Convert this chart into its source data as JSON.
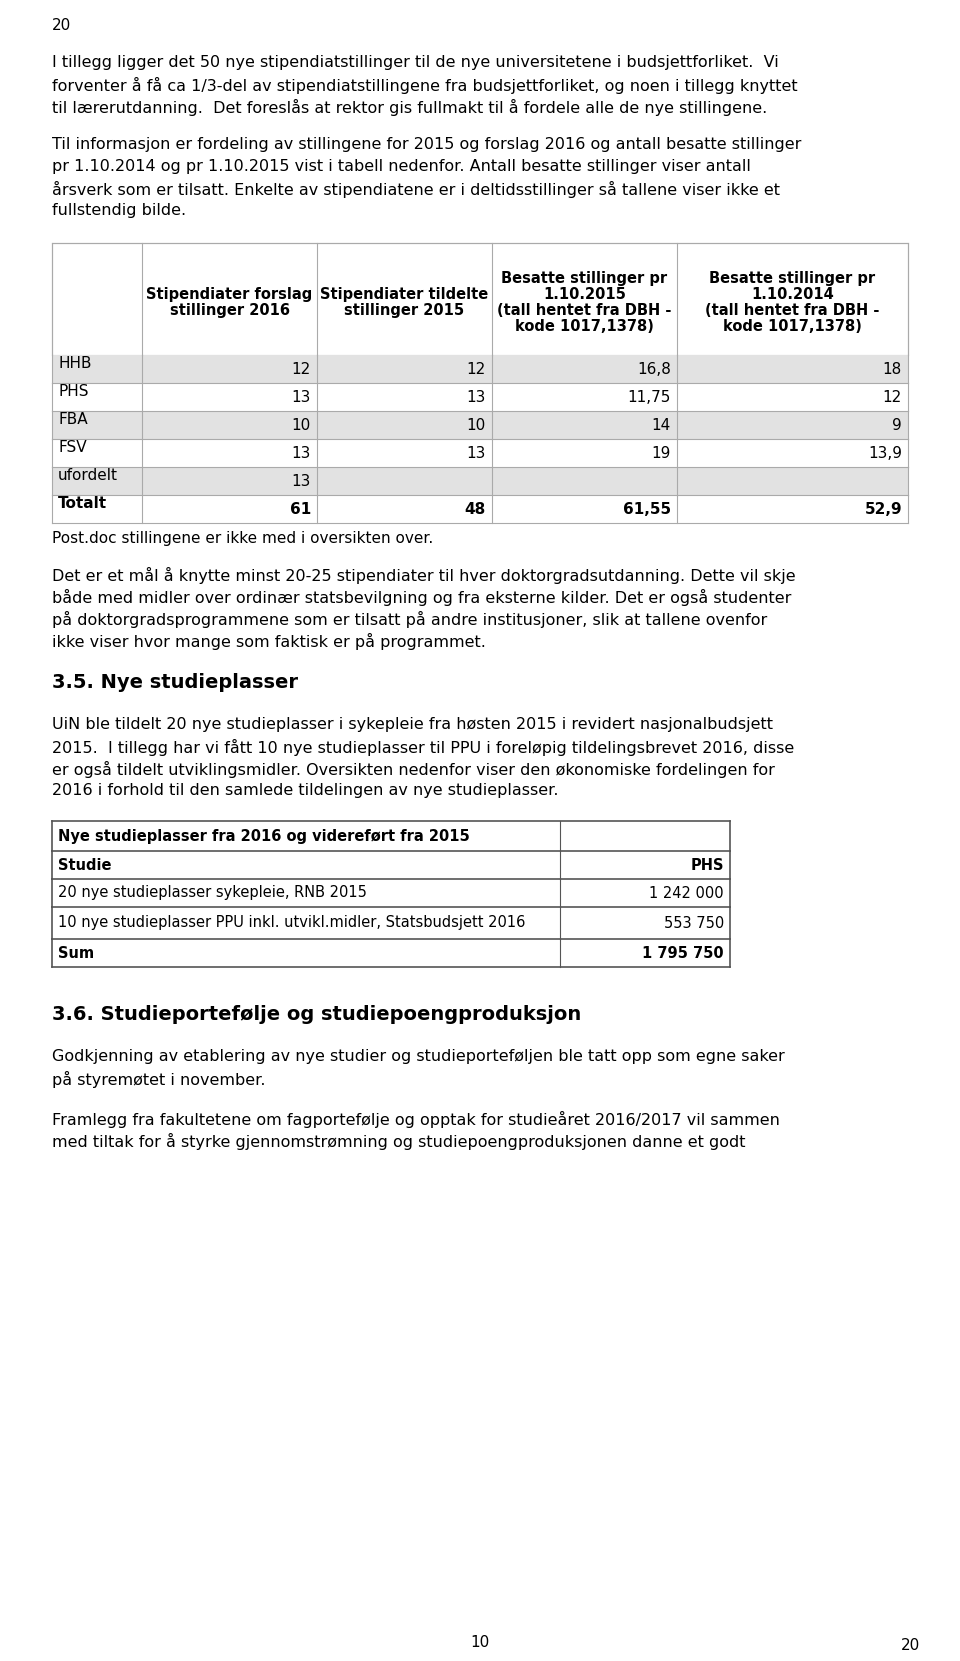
{
  "page_number_top": "20",
  "page_number_bottom": "10",
  "background_color": "#ffffff",
  "text_color": "#000000",
  "para1": "I tillegg ligger det 50 nye stipendiatstillinger til de nye universitetene i budsjettforliket.  Vi forventer å få ca 1/3-del av stipendiatstillingene fra budsjettforliket, og noen i tillegg knyttet til lærerutdanning.  Det foreslås at rektor gis fullmakt til å fordele alle de nye stillingene.",
  "para1_lines": [
    "I tillegg ligger det 50 nye stipendiatstillinger til de nye universitetene i budsjettforliket.  Vi",
    "forventer å få ca 1/3-del av stipendiatstillingene fra budsjettforliket, og noen i tillegg knyttet",
    "til lærerutdanning.  Det foreslås at rektor gis fullmakt til å fordele alle de nye stillingene."
  ],
  "para2_lines": [
    "Til informasjon er fordeling av stillingene for 2015 og forslag 2016 og antall besatte stillinger",
    "pr 1.10.2014 og pr 1.10.2015 vist i tabell nedenfor. Antall besatte stillinger viser antall",
    "årsverk som er tilsatt. Enkelte av stipendiatene er i deltidsstillinger så tallene viser ikke et",
    "fullstendig bilde."
  ],
  "table1_col_headers": [
    "",
    "Stipendiater forslag\nstillinger 2016",
    "Stipendiater tildelte\nstillinger 2015",
    "Besatte stillinger pr\n1.10.2015\n(tall hentet fra DBH -\nkode 1017,1378)",
    "Besatte stillinger pr\n1.10.2014\n(tall hentet fra DBH -\nkode 1017,1378)"
  ],
  "table1_rows": [
    [
      "HHB",
      "12",
      "12",
      "16,8",
      "18"
    ],
    [
      "PHS",
      "13",
      "13",
      "11,75",
      "12"
    ],
    [
      "FBA",
      "10",
      "10",
      "14",
      "9"
    ],
    [
      "FSV",
      "13",
      "13",
      "19",
      "13,9"
    ],
    [
      "ufordelt",
      "13",
      "",
      "",
      ""
    ],
    [
      "Totalt",
      "61",
      "48",
      "61,55",
      "52,9"
    ]
  ],
  "table1_shaded_rows": [
    0,
    2,
    4
  ],
  "post_table1": "Post.doc stillingene er ikke med i oversikten over.",
  "para3_lines": [
    "Det er et mål å knytte minst 20-25 stipendiater til hver doktorgradsutdanning. Dette vil skje",
    "både med midler over ordinær statsbevilgning og fra eksterne kilder. Det er også studenter",
    "på doktorgradsprogrammene som er tilsatt på andre institusjoner, slik at tallene ovenfor",
    "ikke viser hvor mange som faktisk er på programmet."
  ],
  "section1": "3.5. Nye studieplasser",
  "para4_lines": [
    "UiN ble tildelt 20 nye studieplasser i sykepleie fra høsten 2015 i revidert nasjonalbudsjett",
    "2015.  I tillegg har vi fått 10 nye studieplasser til PPU i foreløpig tildelingsbrevet 2016, disse",
    "er også tildelt utviklingsmidler. Oversikten nedenfor viser den økonomiske fordelingen for",
    "2016 i forhold til den samlede tildelingen av nye studieplasser."
  ],
  "table2_rows": [
    [
      "Nye studieplasser fra 2016 og videreført fra 2015",
      ""
    ],
    [
      "Studie",
      "PHS"
    ],
    [
      "20 nye studieplasser sykepleie, RNB 2015",
      "1 242 000"
    ],
    [
      "10 nye studieplasser PPU inkl. utvikl.midler, Statsbudsjett 2016",
      "553 750"
    ],
    [
      "Sum",
      "1 795 750"
    ]
  ],
  "table2_bold_rows": [
    0,
    1,
    4
  ],
  "section2": "3.6. Studieportefølje og studiepoengproduksjon",
  "para5_lines": [
    "Godkjenning av etablering av nye studier og studieporteføljen ble tatt opp som egne saker",
    "på styremøtet i november."
  ],
  "para6_lines": [
    "Framlegg fra fakultetene om fagportefølje og opptak for studieåret 2016/2017 vil sammen",
    "med tiltak for å styrke gjennomstrømning og studiepoengproduksjonen danne et godt"
  ]
}
